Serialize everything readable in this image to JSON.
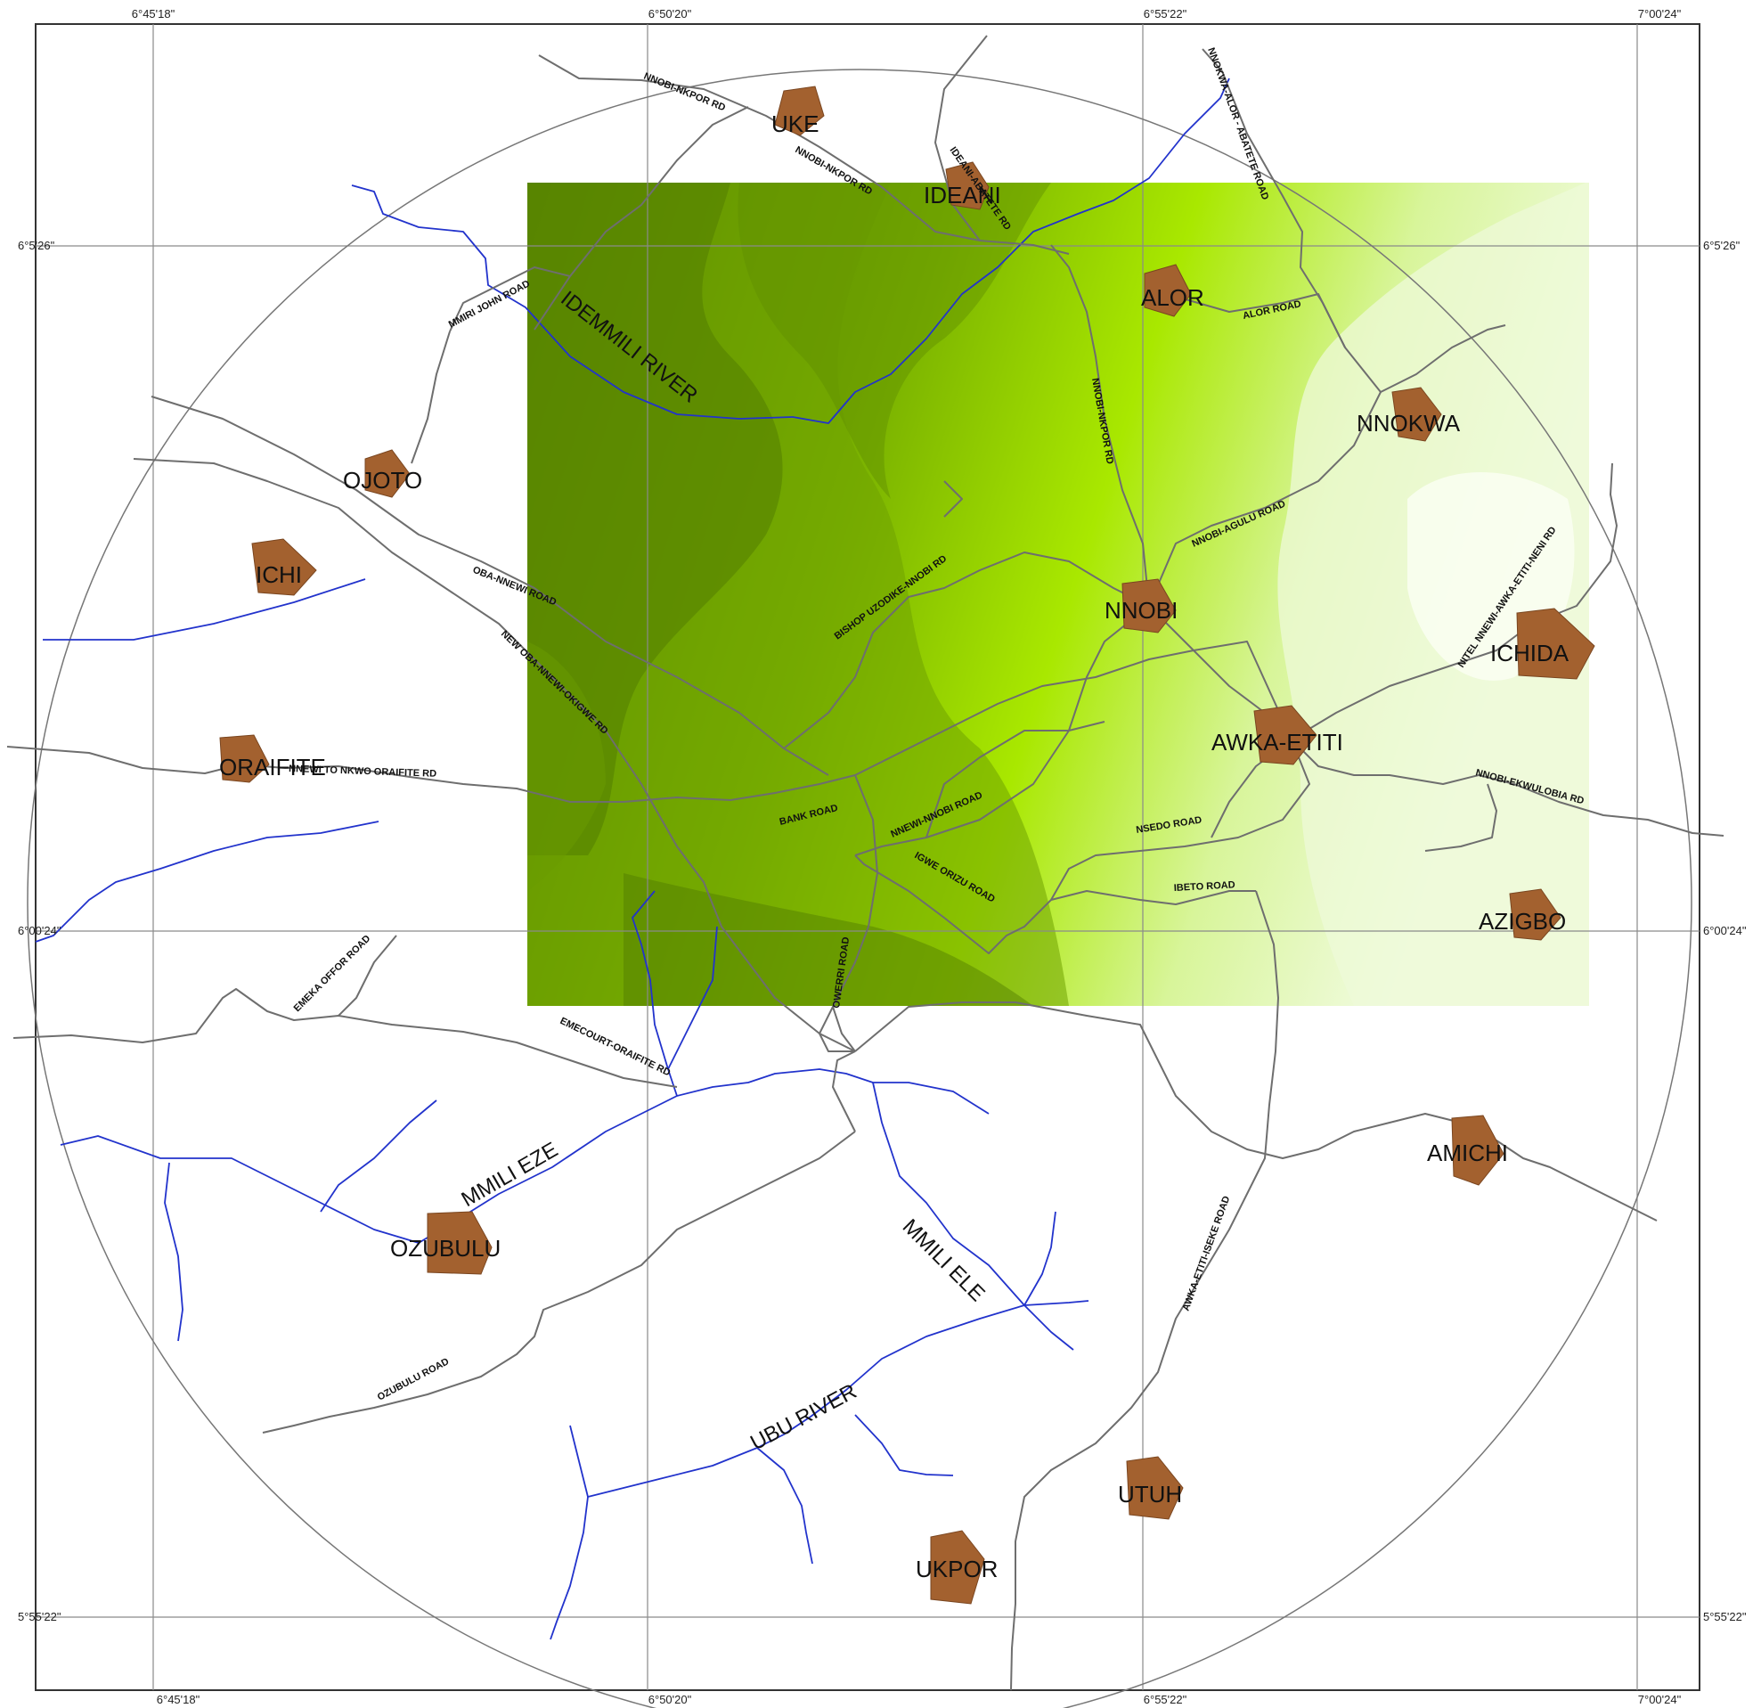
{
  "coords": {
    "lon": [
      "6°45'18\"",
      "6°50'20\"",
      "6°55'22\"",
      "7°00'24\""
    ],
    "lat": [
      "6°5'26\"",
      "6°00'24\"",
      "5°55'22\""
    ]
  },
  "colors": {
    "town": "#a3612f",
    "road": "#6e6e6e",
    "river": "#2233cc",
    "grid": "#8a8a8a",
    "green_dark": "#4f7a00",
    "green_mid": "#7cb400",
    "green_bright": "#a9e800",
    "green_light": "#d8f59a",
    "green_pale": "#f1fbe0"
  },
  "towns": [
    "UKE",
    "IDEANI",
    "ALOR",
    "NNOKWA",
    "OJOTO",
    "ICHI",
    "NNOBI",
    "ICHIDA",
    "AWKA-ETITI",
    "ORAIFITE",
    "AZIGBO",
    "AMICHI",
    "OZUBULU",
    "UTUH",
    "UKPOR"
  ],
  "rivers": [
    "IDEMMILI RIVER",
    "MMILI EZE",
    "MMILI ELE",
    "UBU RIVER"
  ],
  "roads": [
    "NNOBI-NKPOR RD",
    "NNOBI-NKPOR RD",
    "IDEANI-ABATETE RD",
    "NNOKWA-ALOR - ABATETE ROAD",
    "ALOR ROAD",
    "MMIRI JOHN ROAD",
    "NNOBI-NKPOR RD",
    "NNOBI-AGULU ROAD",
    "OBA-NNEWI ROAD",
    "BISHOP UZODIKE-NNOBI RD",
    "NEW OBA-NNEWI-OKIGWE RD",
    "NITEL NNEWI-AWKA-ETITI-NENI RD",
    "NNEWI TO NKWO ORAIFITE RD",
    "BANK ROAD",
    "NNEWI-NNOBI ROAD",
    "NNOBI-EKWULOBIA RD",
    "NSEDO ROAD",
    "IGWE ORIZU ROAD",
    "IBETO ROAD",
    "EMEKA OFFOR ROAD",
    "OWERRI ROAD",
    "EMECOURT-ORAIFITE RD",
    "AWKA-ETITI-ISEKE ROAD",
    "OZUBULU ROAD"
  ]
}
